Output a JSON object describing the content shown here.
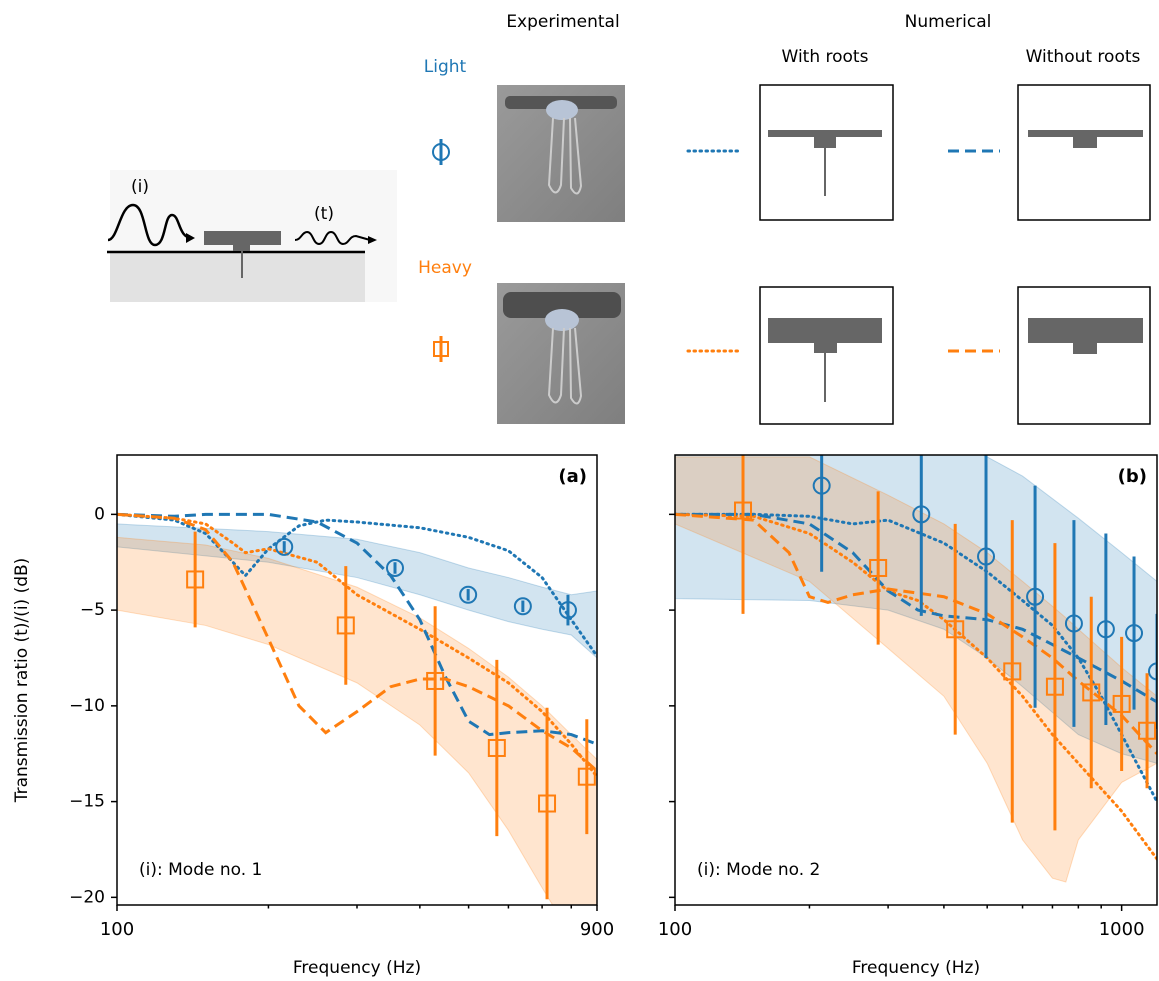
{
  "legend": {
    "experimental": "Experimental",
    "numerical": "Numerical",
    "with_roots": "With roots",
    "without_roots": "Without roots",
    "light": "Light",
    "heavy": "Heavy"
  },
  "schematic": {
    "incident": "(i)",
    "transmitted": "(t)"
  },
  "chart_data": [
    {
      "type": "line",
      "panel_label": "(a)",
      "annotation": "(i): Mode no. 1",
      "x_label": "Frequency (Hz)",
      "y_label": "Transmission ratio (t)/(i) (dB)",
      "log_x": true,
      "xlim": [
        100,
        900
      ],
      "xticks": [
        100,
        900
      ],
      "xminorticks": [
        200,
        300,
        400,
        500,
        600,
        700,
        800
      ],
      "ylim": [
        -20.4,
        3.1
      ],
      "ytick_labels": true,
      "yticks": [
        0,
        {
          "value": -5,
          "label": "−5"
        },
        {
          "value": -10,
          "label": "−10"
        },
        {
          "value": -15,
          "label": "−15"
        },
        {
          "value": -20,
          "label": "−20"
        }
      ],
      "series": [
        {
          "style": "band",
          "color": "#1f77b4",
          "x": [
            100,
            200,
            300,
            400,
            500,
            600,
            700,
            800,
            900
          ],
          "lower": [
            -1.7,
            -2.5,
            -3.3,
            -4.2,
            -5,
            -5.6,
            -6,
            -6.3,
            -7.5
          ],
          "upper": [
            -0.5,
            -0.9,
            -1.3,
            -2,
            -2.8,
            -3.3,
            -3.8,
            -4.2,
            -4
          ]
        },
        {
          "style": "band",
          "color": "#ff7f0e",
          "x": [
            100,
            150,
            200,
            300,
            400,
            500,
            600,
            700,
            800,
            900
          ],
          "lower": [
            -5,
            -5.8,
            -6.8,
            -8.8,
            -11,
            -13.5,
            -16.5,
            -19.5,
            -22,
            -24
          ],
          "upper": [
            -1.2,
            -1.6,
            -2.3,
            -3.8,
            -5.4,
            -7,
            -8.5,
            -10,
            -11.5,
            -12.8
          ]
        },
        {
          "style": "dotted",
          "color": "#1f77b4",
          "x": [
            100,
            130,
            150,
            170,
            180,
            200,
            230,
            260,
            300,
            400,
            500,
            600,
            700,
            800,
            900
          ],
          "values": [
            0,
            -0.3,
            -1,
            -2.5,
            -3.2,
            -1.8,
            -0.6,
            -0.3,
            -0.4,
            -0.7,
            -1.2,
            -1.9,
            -3.3,
            -5.5,
            -7.4
          ]
        },
        {
          "style": "dashed",
          "color": "#1f77b4",
          "x": [
            100,
            130,
            150,
            200,
            250,
            300,
            350,
            400,
            450,
            500,
            550,
            600,
            700,
            800,
            900
          ],
          "values": [
            0,
            -0.1,
            0,
            0,
            -0.4,
            -1.5,
            -3.2,
            -5.5,
            -8.5,
            -10.8,
            -11.5,
            -11.4,
            -11.3,
            -11.5,
            -12
          ]
        },
        {
          "style": "dotted",
          "color": "#ff7f0e",
          "x": [
            100,
            130,
            150,
            170,
            180,
            200,
            250,
            300,
            400,
            500,
            600,
            700,
            800,
            900
          ],
          "values": [
            0,
            -0.2,
            -0.5,
            -1.5,
            -2,
            -1.8,
            -2.5,
            -4.2,
            -6,
            -7.5,
            -8.8,
            -10.3,
            -12,
            -13.7
          ]
        },
        {
          "style": "dashed",
          "color": "#ff7f0e",
          "x": [
            100,
            130,
            150,
            170,
            200,
            230,
            260,
            300,
            350,
            400,
            450,
            500,
            600,
            700,
            800,
            900
          ],
          "values": [
            0,
            -0.2,
            -0.8,
            -2.5,
            -6.5,
            -10,
            -11.4,
            -10.3,
            -9,
            -8.6,
            -8.6,
            -9,
            -10,
            -11.3,
            -12.2,
            -13.4
          ]
        },
        {
          "style": "errorbar",
          "marker": "circle",
          "color": "#1f77b4",
          "x": [
            215,
            357,
            499,
            641,
            788
          ],
          "values": [
            -1.7,
            -2.8,
            -4.2,
            -4.8,
            -5
          ],
          "errors": [
            0.3,
            0.3,
            0.3,
            0.3,
            0.8
          ]
        },
        {
          "style": "errorbar",
          "marker": "square",
          "color": "#ff7f0e",
          "x": [
            143,
            285,
            429,
            569,
            716,
            859
          ],
          "values": [
            -3.4,
            -5.8,
            -8.7,
            -12.2,
            -15.1,
            -13.7
          ],
          "errors": [
            2.5,
            3.1,
            3.9,
            4.6,
            5,
            3
          ]
        }
      ]
    },
    {
      "type": "line",
      "panel_label": "(b)",
      "annotation": "(i): Mode no. 2",
      "x_label": "Frequency (Hz)",
      "log_x": true,
      "xlim": [
        100,
        1200
      ],
      "xticks": [
        100,
        1000
      ],
      "xminorticks": [
        200,
        300,
        400,
        500,
        600,
        700,
        800,
        900
      ],
      "ylim": [
        -20.4,
        3.1
      ],
      "ytick_labels": false,
      "yticks": [
        0,
        -5,
        -10,
        -15,
        -20
      ],
      "series": [
        {
          "style": "band",
          "color": "#1f77b4",
          "x": [
            100,
            200,
            300,
            400,
            500,
            600,
            800,
            1000,
            1200
          ],
          "lower": [
            -4.4,
            -4.5,
            -5,
            -6,
            -7.5,
            -9,
            -11.5,
            -12.5,
            -13
          ],
          "upper": [
            4,
            4,
            4,
            4,
            3,
            2,
            -0.2,
            -2,
            -3.5
          ]
        },
        {
          "style": "band",
          "color": "#ff7f0e",
          "x": [
            100,
            200,
            300,
            400,
            500,
            600,
            700,
            750,
            800,
            1000,
            1200
          ],
          "lower": [
            -0.5,
            -3.5,
            -7,
            -9.5,
            -13,
            -17,
            -19,
            -19.2,
            -17,
            -14,
            -13
          ],
          "upper": [
            3,
            3,
            1,
            -0.5,
            -2,
            -3.5,
            -4.8,
            -5.4,
            -6,
            -8,
            -9.5
          ]
        },
        {
          "style": "dotted",
          "color": "#1f77b4",
          "x": [
            100,
            150,
            200,
            250,
            300,
            400,
            500,
            600,
            700,
            800,
            900,
            1000,
            1200
          ],
          "values": [
            0,
            0,
            -0.1,
            -0.5,
            -0.3,
            -1.5,
            -3,
            -4.5,
            -5.8,
            -7.5,
            -9.5,
            -11.5,
            -15
          ]
        },
        {
          "style": "dashed",
          "color": "#1f77b4",
          "x": [
            100,
            150,
            200,
            250,
            300,
            350,
            400,
            500,
            600,
            700,
            800,
            1000,
            1200
          ],
          "values": [
            0,
            0,
            -0.5,
            -2,
            -4,
            -5,
            -5.3,
            -5.5,
            -6,
            -6.8,
            -7.5,
            -8.7,
            -9.8
          ]
        },
        {
          "style": "dotted",
          "color": "#ff7f0e",
          "x": [
            100,
            150,
            200,
            250,
            300,
            350,
            400,
            500,
            600,
            700,
            800,
            1000,
            1200
          ],
          "values": [
            0,
            -0.1,
            -1,
            -2.5,
            -4,
            -4.5,
            -5.5,
            -7.5,
            -9.5,
            -11.5,
            -13,
            -15.5,
            -18
          ]
        },
        {
          "style": "dashed",
          "color": "#ff7f0e",
          "x": [
            100,
            150,
            180,
            200,
            220,
            250,
            300,
            400,
            500,
            600,
            700,
            800,
            1000,
            1200
          ],
          "values": [
            0,
            -0.3,
            -2,
            -4.3,
            -4.6,
            -4.2,
            -3.9,
            -4.3,
            -5.2,
            -6.4,
            -7.5,
            -8.7,
            -10.5,
            -12.5
          ]
        },
        {
          "style": "errorbar",
          "marker": "circle",
          "color": "#1f77b4",
          "x": [
            213,
            356,
            497,
            640,
            782,
            922,
            1066,
            1200
          ],
          "values": [
            1.5,
            0,
            -2.2,
            -4.3,
            -5.7,
            -6,
            -6.2,
            -8.2
          ],
          "errors": [
            4.5,
            5.3,
            5.3,
            5.8,
            5.4,
            5,
            4,
            3
          ]
        },
        {
          "style": "errorbar",
          "marker": "square",
          "color": "#ff7f0e",
          "x": [
            142,
            285,
            424,
            569,
            709,
            855,
            1000,
            1140
          ],
          "values": [
            0.2,
            -2.8,
            -6,
            -8.2,
            -9,
            -9.3,
            -9.9,
            -11.3
          ],
          "errors": [
            5.4,
            4,
            5.5,
            7.9,
            7.5,
            5,
            3.5,
            3
          ]
        }
      ]
    }
  ]
}
